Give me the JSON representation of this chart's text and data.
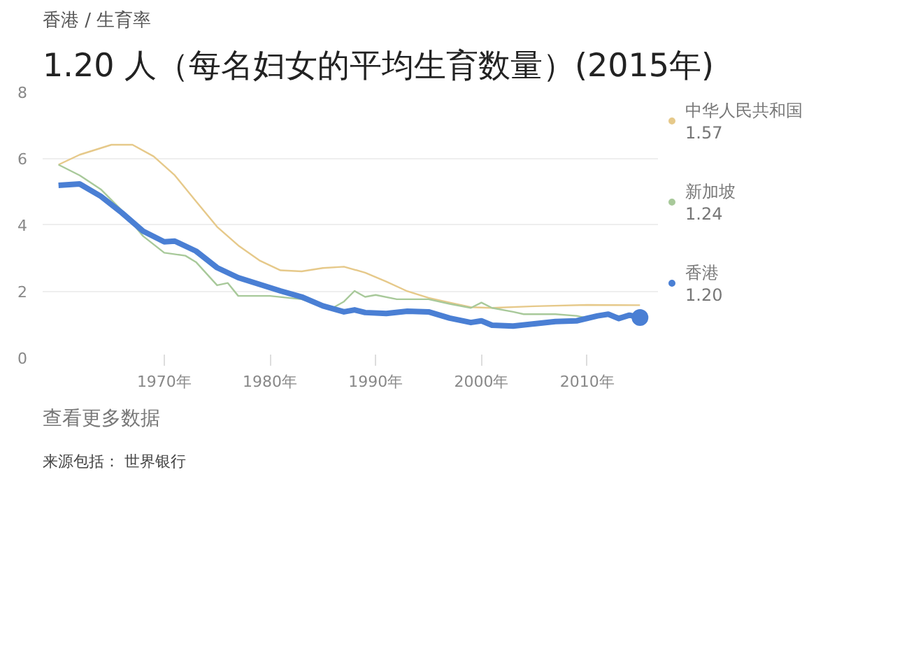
{
  "chart_data": {
    "type": "line",
    "title": "1.20 人（每名妇女的平均生育数量）(2015年)",
    "annotations": [
      "香港 / 生育率",
      "查看更多数据",
      "来源包括： 世界银行",
      "1.57",
      "1.24",
      "1.20"
    ],
    "xlim": [
      1958.5,
      2016.7
    ],
    "ylim": [
      0,
      8
    ],
    "xticks": [
      {
        "value": 1970,
        "label": "1970年"
      },
      {
        "value": 1980,
        "label": "1980年"
      },
      {
        "value": 1990,
        "label": "1990年"
      },
      {
        "value": 2000,
        "label": "2000年"
      },
      {
        "value": 2010,
        "label": "2010年"
      }
    ],
    "yticks": [
      0,
      2,
      4,
      6,
      8
    ],
    "grid": "y",
    "legend": "right",
    "line_style": "solid",
    "series": [
      {
        "name": "中华人民共和国",
        "color": "#e6c98a",
        "x": [
          1960,
          1962,
          1965,
          1967,
          1969,
          1971,
          1973,
          1975,
          1977,
          1979,
          1981,
          1983,
          1985,
          1987,
          1989,
          1991,
          1993,
          1995,
          1997,
          1999,
          2001,
          2005,
          2010,
          2015
        ],
        "values": [
          5.8,
          6.1,
          6.4,
          6.4,
          6.05,
          5.48,
          4.7,
          3.93,
          3.37,
          2.92,
          2.62,
          2.59,
          2.69,
          2.73,
          2.55,
          2.28,
          1.99,
          1.79,
          1.65,
          1.51,
          1.49,
          1.54,
          1.58,
          1.57
        ]
      },
      {
        "name": "新加坡",
        "color": "#a8c99a",
        "x": [
          1960,
          1962,
          1964,
          1966,
          1968,
          1970,
          1972,
          1973,
          1975,
          1976,
          1977,
          1980,
          1983,
          1985,
          1986,
          1987,
          1988,
          1989,
          1990,
          1992,
          1995,
          1997,
          1999,
          2000,
          2001,
          2003,
          2004,
          2007,
          2009,
          2010,
          2012,
          2015
        ],
        "values": [
          5.8,
          5.48,
          5.06,
          4.42,
          3.65,
          3.15,
          3.06,
          2.87,
          2.17,
          2.24,
          1.85,
          1.85,
          1.75,
          1.55,
          1.5,
          1.68,
          2.0,
          1.82,
          1.88,
          1.75,
          1.75,
          1.61,
          1.49,
          1.65,
          1.49,
          1.37,
          1.3,
          1.3,
          1.25,
          1.18,
          1.25,
          1.24
        ]
      },
      {
        "name": "香港",
        "color": "#4a7fd4",
        "x": [
          1960,
          1962,
          1964,
          1966,
          1968,
          1970,
          1971,
          1973,
          1975,
          1977,
          1979,
          1981,
          1983,
          1985,
          1987,
          1988,
          1989,
          1991,
          1993,
          1995,
          1997,
          1999,
          2000,
          2001,
          2003,
          2005,
          2007,
          2009,
          2011,
          2012,
          2013,
          2014,
          2015
        ],
        "values": [
          5.18,
          5.22,
          4.85,
          4.35,
          3.8,
          3.48,
          3.5,
          3.2,
          2.7,
          2.4,
          2.2,
          2.0,
          1.82,
          1.55,
          1.37,
          1.43,
          1.35,
          1.32,
          1.39,
          1.37,
          1.18,
          1.05,
          1.1,
          0.97,
          0.94,
          1.01,
          1.08,
          1.1,
          1.25,
          1.3,
          1.17,
          1.27,
          1.2
        ]
      }
    ]
  }
}
